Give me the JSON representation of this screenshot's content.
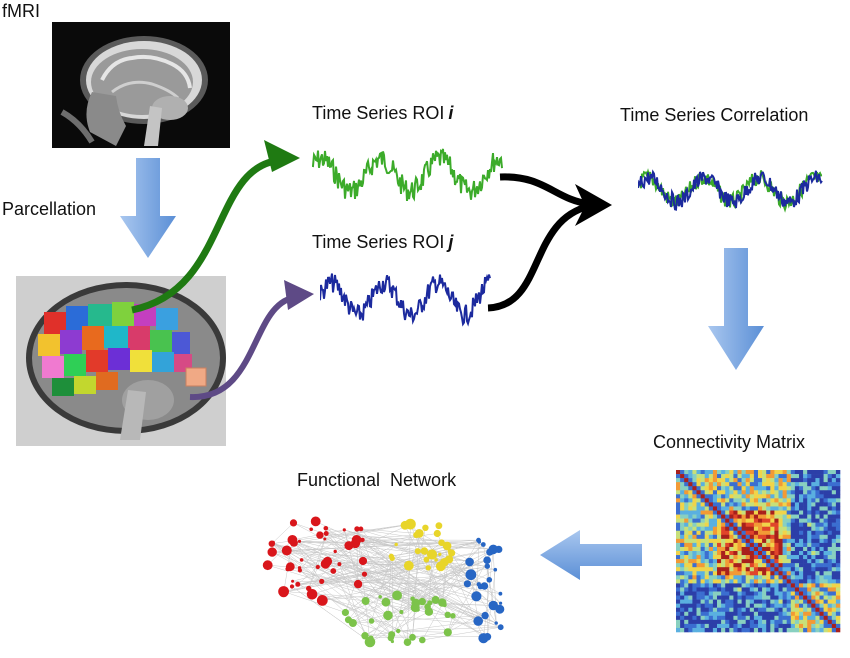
{
  "labels": {
    "fmri": "fMRI",
    "parcellation": "Parcellation",
    "roi_i_prefix": "Time Series ROI",
    "roi_i_var": "i",
    "roi_j_prefix": "Time Series ROI",
    "roi_j_var": "j",
    "correlation": "Time Series Correlation",
    "matrix": "Connectivity Matrix",
    "network": "Functional  Network"
  },
  "colors": {
    "roi_i": "#3cab2a",
    "roi_j": "#1c2a9e",
    "arrow_green": "#1f7a12",
    "arrow_purple": "#5e4a86",
    "arrow_black": "#000000",
    "block_arrow": "#8db3e2",
    "node_red": "#d9161b",
    "node_yellow": "#e8d52a",
    "node_green": "#7cc34a",
    "node_blue": "#2766c4"
  },
  "icons": {
    "fmri": "mri-sagittal-brain-icon",
    "parcellation": "parcellated-brain-icon",
    "matrix": "connectivity-matrix-heatmap",
    "network": "functional-network-graph"
  }
}
